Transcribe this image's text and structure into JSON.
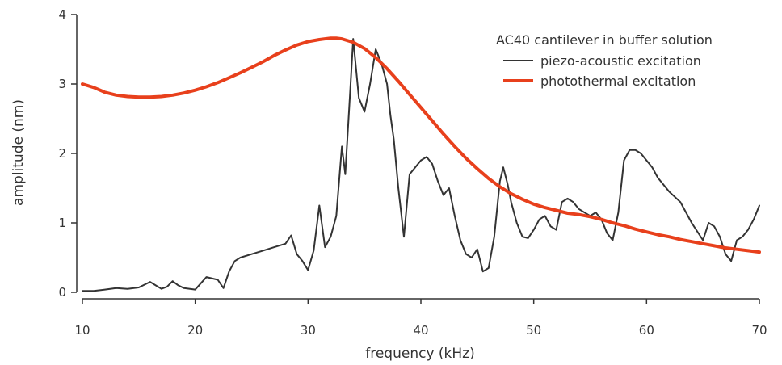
{
  "chart_data": {
    "type": "line",
    "title": "",
    "xlabel": "frequency (kHz)",
    "ylabel": "amplitude (nm)",
    "xlim": [
      10,
      70
    ],
    "ylim": [
      0,
      4
    ],
    "x_ticks": [
      10,
      20,
      30,
      40,
      50,
      60,
      70
    ],
    "y_ticks": [
      0,
      1,
      2,
      3,
      4
    ],
    "grid": false,
    "legend": {
      "placement": "top-right",
      "title": "AC40 cantilever in buffer solution"
    },
    "series": [
      {
        "name": "piezo-acoustic excitation",
        "color": "#333333",
        "x": [
          10,
          11,
          12,
          13,
          14,
          15,
          16,
          17,
          17.5,
          18,
          18.5,
          19,
          20,
          21,
          22,
          22.5,
          23,
          23.5,
          24,
          25,
          26,
          27,
          28,
          28.5,
          29,
          29.5,
          30,
          30.5,
          31,
          31.5,
          32,
          32.5,
          33,
          33.3,
          33.7,
          34,
          34.5,
          35,
          35.5,
          36,
          36.5,
          37,
          37.3,
          37.6,
          38,
          38.5,
          39,
          39.5,
          40,
          40.5,
          41,
          41.5,
          42,
          42.5,
          43,
          43.5,
          44,
          44.5,
          45,
          45.5,
          46,
          46.5,
          47,
          47.3,
          47.7,
          48,
          48.5,
          49,
          49.5,
          50,
          50.5,
          51,
          51.5,
          52,
          52.5,
          53,
          53.5,
          54,
          55,
          55.5,
          56,
          56.5,
          57,
          57.5,
          58,
          58.5,
          59,
          59.5,
          60,
          60.5,
          61,
          62,
          63,
          64,
          65,
          65.5,
          66,
          66.5,
          67,
          67.5,
          68,
          68.5,
          69,
          69.5,
          70
        ],
        "values": [
          0.02,
          0.02,
          0.04,
          0.06,
          0.05,
          0.07,
          0.15,
          0.05,
          0.08,
          0.16,
          0.1,
          0.06,
          0.04,
          0.22,
          0.18,
          0.06,
          0.3,
          0.45,
          0.5,
          0.55,
          0.6,
          0.65,
          0.7,
          0.82,
          0.55,
          0.45,
          0.32,
          0.6,
          1.25,
          0.65,
          0.8,
          1.1,
          2.1,
          1.7,
          2.8,
          3.65,
          2.8,
          2.6,
          3.0,
          3.5,
          3.3,
          3.0,
          2.55,
          2.2,
          1.5,
          0.8,
          1.7,
          1.8,
          1.9,
          1.95,
          1.85,
          1.6,
          1.4,
          1.5,
          1.1,
          0.75,
          0.55,
          0.5,
          0.62,
          0.3,
          0.35,
          0.8,
          1.6,
          1.8,
          1.55,
          1.3,
          1.0,
          0.8,
          0.78,
          0.9,
          1.05,
          1.1,
          0.95,
          0.9,
          1.3,
          1.35,
          1.3,
          1.2,
          1.1,
          1.15,
          1.05,
          0.85,
          0.75,
          1.15,
          1.9,
          2.05,
          2.05,
          2.0,
          1.9,
          1.8,
          1.65,
          1.45,
          1.3,
          1.0,
          0.75,
          1.0,
          0.95,
          0.8,
          0.55,
          0.45,
          0.75,
          0.8,
          0.9,
          1.05,
          1.25
        ],
        "stroke_width": 2
      },
      {
        "name": "photothermal excitation",
        "color": "#e8401c",
        "x": [
          10,
          11,
          12,
          13,
          14,
          15,
          16,
          17,
          18,
          19,
          20,
          21,
          22,
          23,
          24,
          25,
          26,
          27,
          28,
          29,
          30,
          31,
          32,
          32.5,
          33,
          34,
          35,
          36,
          37,
          38,
          39,
          40,
          41,
          42,
          43,
          44,
          45,
          46,
          47,
          48,
          49,
          50,
          51,
          52,
          53,
          54,
          55,
          56,
          57,
          58,
          59,
          60,
          61,
          62,
          63,
          64,
          65,
          66,
          67,
          68,
          69,
          70
        ],
        "values": [
          3.0,
          2.95,
          2.88,
          2.84,
          2.82,
          2.81,
          2.81,
          2.82,
          2.84,
          2.87,
          2.91,
          2.96,
          3.02,
          3.09,
          3.16,
          3.24,
          3.32,
          3.41,
          3.49,
          3.56,
          3.61,
          3.64,
          3.66,
          3.66,
          3.65,
          3.6,
          3.51,
          3.38,
          3.22,
          3.04,
          2.85,
          2.66,
          2.47,
          2.28,
          2.1,
          1.93,
          1.78,
          1.64,
          1.52,
          1.42,
          1.34,
          1.27,
          1.22,
          1.18,
          1.14,
          1.12,
          1.09,
          1.05,
          1.0,
          0.96,
          0.91,
          0.87,
          0.83,
          0.8,
          0.76,
          0.73,
          0.7,
          0.67,
          0.64,
          0.62,
          0.6,
          0.58
        ],
        "stroke_width": 4
      }
    ]
  }
}
